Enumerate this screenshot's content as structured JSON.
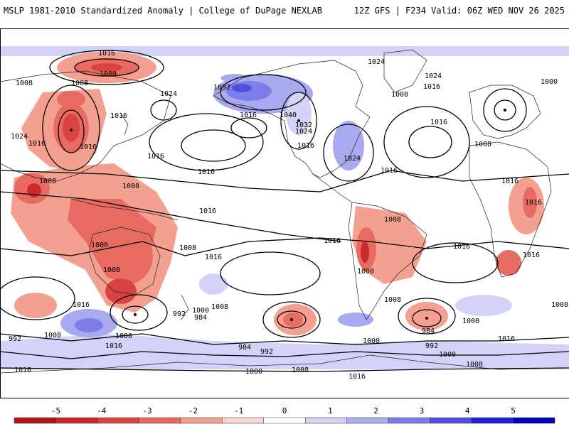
{
  "header": {
    "title_left": "MSLP 1981-2010 Standardized Anomaly | College of DuPage NEXLAB",
    "title_right": "12Z GFS | F234 Valid: 06Z WED NOV 26 2025"
  },
  "map": {
    "projection": "global cylindrical",
    "isobar_labels": [
      {
        "text": "1016",
        "name": "isobar-label-1016-north-pacific"
      },
      {
        "text": "1000",
        "name": "isobar-label-1000-north-pacific"
      },
      {
        "text": "1008",
        "name": "isobar-label-1008-west-siberia"
      },
      {
        "text": "1008",
        "name": "isobar-label-1008-central-asia"
      },
      {
        "text": "1024",
        "name": "isobar-label-1024-east-asia"
      },
      {
        "text": "1032",
        "name": "isobar-label-1032-russia"
      },
      {
        "text": "1016",
        "name": "isobar-label-1016-mongolia"
      },
      {
        "text": "1016",
        "name": "isobar-label-1016-east-china"
      },
      {
        "text": "1016",
        "name": "isobar-label-1016-japan-sea"
      },
      {
        "text": "1024",
        "name": "isobar-label-1024-west-asia"
      },
      {
        "text": "1016",
        "name": "isobar-label-1016-north-asia"
      },
      {
        "text": "1016",
        "name": "isobar-label-1016-arabia"
      },
      {
        "text": "1008",
        "name": "isobar-label-1008-india"
      },
      {
        "text": "1008",
        "name": "isobar-label-1008-equatorial-indian-ocean"
      },
      {
        "text": "1016",
        "name": "isobar-label-1016-south-indian-ocean"
      },
      {
        "text": "1000",
        "name": "isobar-label-1000-indian-ocean"
      },
      {
        "text": "1008",
        "name": "isobar-label-1008-south-indian-ocean"
      },
      {
        "text": "1008",
        "name": "isobar-label-1008-madagascar"
      },
      {
        "text": "1016",
        "name": "isobar-label-1016-southwest-indian-ocean"
      },
      {
        "text": "992",
        "name": "isobar-label-992-southwest-indian-ocean"
      },
      {
        "text": "1008",
        "name": "isobar-label-1008-southwest-indian-ocean"
      },
      {
        "text": "1000",
        "name": "isobar-label-1000-south-indian-ocean"
      },
      {
        "text": "1016",
        "name": "isobar-label-1016-antarctic-coast-west"
      },
      {
        "text": "1016",
        "name": "isobar-label-1016-australia-west"
      },
      {
        "text": "992",
        "name": "isobar-label-992-tasman"
      },
      {
        "text": "1000",
        "name": "isobar-label-1000-tasman"
      },
      {
        "text": "984",
        "name": "isobar-label-984-tasman"
      },
      {
        "text": "1008",
        "name": "isobar-label-1008-tasman"
      },
      {
        "text": "984",
        "name": "isobar-label-984-south-pacific"
      },
      {
        "text": "992",
        "name": "isobar-label-992-south-pacific"
      },
      {
        "text": "1000",
        "name": "isobar-label-1000-south-pacific"
      },
      {
        "text": "1008",
        "name": "isobar-label-1008-south-pacific"
      },
      {
        "text": "1016",
        "name": "isobar-label-1016-south-pacific"
      },
      {
        "text": "1016",
        "name": "isobar-label-1016-southeast-pacific"
      },
      {
        "text": "1016",
        "name": "isobar-label-1016-alaska"
      },
      {
        "text": "1040",
        "name": "isobar-label-1040-canada"
      },
      {
        "text": "1032",
        "name": "isobar-label-1032-canada"
      },
      {
        "text": "1024",
        "name": "isobar-label-1024-canada"
      },
      {
        "text": "1016",
        "name": "isobar-label-1016-west-us"
      },
      {
        "text": "1024",
        "name": "isobar-label-1024-east-us"
      },
      {
        "text": "1016",
        "name": "isobar-label-1016-west-atlantic"
      },
      {
        "text": "1016",
        "name": "isobar-label-1016-central-pacific"
      },
      {
        "text": "1024",
        "name": "isobar-label-1024-greenland"
      },
      {
        "text": "1024",
        "name": "isobar-label-1024-north-atlantic"
      },
      {
        "text": "1016",
        "name": "isobar-label-1016-north-atlantic"
      },
      {
        "text": "1008",
        "name": "isobar-label-1008-north-atlantic"
      },
      {
        "text": "1000",
        "name": "isobar-label-1000-scandinavia"
      },
      {
        "text": "1016",
        "name": "isobar-label-1016-europe"
      },
      {
        "text": "1008",
        "name": "isobar-label-1008-europe"
      },
      {
        "text": "1016",
        "name": "isobar-label-1016-mid-atlantic"
      },
      {
        "text": "1008",
        "name": "isobar-label-1008-brazil"
      },
      {
        "text": "1016",
        "name": "isobar-label-1016-south-atlantic"
      },
      {
        "text": "1008",
        "name": "isobar-label-1008-argentina"
      },
      {
        "text": "1016",
        "name": "isobar-label-1016-south-america"
      },
      {
        "text": "1008",
        "name": "isobar-label-1008-south-atlantic"
      },
      {
        "text": "984",
        "name": "isobar-label-984-south-atlantic"
      },
      {
        "text": "1000",
        "name": "isobar-label-1000-south-atlantic"
      },
      {
        "text": "1000",
        "name": "isobar-label-1000-drake-passage"
      },
      {
        "text": "992",
        "name": "isobar-label-992-south-atlantic"
      },
      {
        "text": "1000",
        "name": "isobar-label-1000-southern-ocean"
      },
      {
        "text": "1016",
        "name": "isobar-label-1016-east-africa"
      },
      {
        "text": "1008",
        "name": "isobar-label-1008-east-africa"
      },
      {
        "text": "1008",
        "name": "isobar-label-1008-south-indian-east"
      },
      {
        "text": "1016",
        "name": "isobar-label-1016-antarctic-coast"
      }
    ]
  },
  "colorbar": {
    "ticks": [
      "-5",
      "-4",
      "-3",
      "-2",
      "-1",
      "0",
      "1",
      "2",
      "3",
      "4",
      "5"
    ],
    "min": -5,
    "max": 5,
    "colors": [
      "#b0151a",
      "#c92a2e",
      "#d94442",
      "#e76b62",
      "#f4a090",
      "#fcd6cc",
      "#ffffff",
      "#d3d3f7",
      "#a9a9ef",
      "#7e7ee9",
      "#5050e0",
      "#2020d6",
      "#0000b8"
    ]
  }
}
